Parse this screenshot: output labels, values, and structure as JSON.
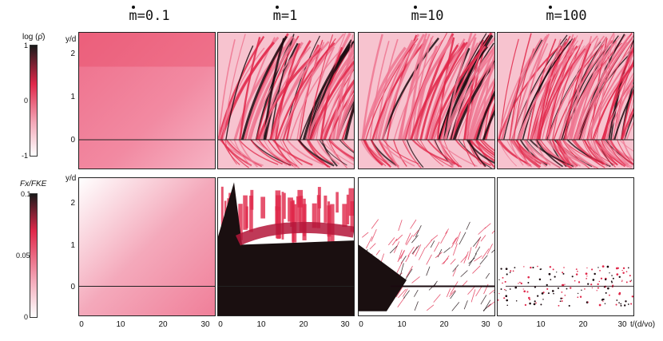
{
  "columns": [
    {
      "prefix": "m",
      "suffix": "=0.1"
    },
    {
      "prefix": "m",
      "suffix": "=1"
    },
    {
      "prefix": "m",
      "suffix": "=10"
    },
    {
      "prefix": "m",
      "suffix": "=100"
    }
  ],
  "colorbars": [
    {
      "title": "log (ρ̂)",
      "ticks": [
        "1",
        "0",
        "-1"
      ],
      "top_color": "#1a1a1a",
      "mid_color": "#e0284a",
      "bottom_color": "#ffffff"
    },
    {
      "title": "Fx/FKE",
      "ticks": [
        "0.1",
        "0.05",
        "0"
      ],
      "top_color": "#1a1a1a",
      "mid_color": "#e0284a",
      "bottom_color": "#ffffff"
    }
  ],
  "axes": {
    "y_label": "y/d",
    "y_ticks": [
      "2",
      "1",
      "0"
    ],
    "x_ticks": [
      "0",
      "10",
      "20",
      "30"
    ],
    "x_label": "t/(d/vo)"
  },
  "chart_data": [
    {
      "type": "heatmap",
      "row": "log density",
      "title": "m=0.1",
      "xlim": [
        0,
        32
      ],
      "ylim": [
        -0.7,
        2.6
      ],
      "pattern": "smooth gradient",
      "reference_line_y": 0
    },
    {
      "type": "heatmap",
      "row": "log density",
      "title": "m=1",
      "xlim": [
        0,
        32
      ],
      "ylim": [
        -0.7,
        2.6
      ],
      "pattern": "curved filaments",
      "reference_line_y": 0
    },
    {
      "type": "heatmap",
      "row": "log density",
      "title": "m=10",
      "xlim": [
        0,
        32
      ],
      "ylim": [
        -0.7,
        2.6
      ],
      "pattern": "curved filaments",
      "reference_line_y": 0
    },
    {
      "type": "heatmap",
      "row": "log density",
      "title": "m=100",
      "xlim": [
        0,
        32
      ],
      "ylim": [
        -0.7,
        2.6
      ],
      "pattern": "fine curved filaments",
      "reference_line_y": 0
    },
    {
      "type": "heatmap",
      "row": "Fx/FKE",
      "title": "m=0.1",
      "xlim": [
        0,
        32
      ],
      "ylim": [
        -0.7,
        2.6
      ],
      "pattern": "smooth gradient",
      "reference_line_y": 0
    },
    {
      "type": "heatmap",
      "row": "Fx/FKE",
      "title": "m=1",
      "xlim": [
        0,
        32
      ],
      "ylim": [
        -0.7,
        2.6
      ],
      "pattern": "saturated core with streaks",
      "reference_line_y": 0
    },
    {
      "type": "heatmap",
      "row": "Fx/FKE",
      "title": "m=10",
      "xlim": [
        0,
        32
      ],
      "ylim": [
        -0.7,
        2.6
      ],
      "pattern": "early dark wedge, sparse streaks"
    },
    {
      "type": "heatmap",
      "row": "Fx/FKE",
      "title": "m=100",
      "xlim": [
        0,
        32
      ],
      "ylim": [
        -0.7,
        2.6
      ],
      "pattern": "sparse dotted streaks"
    }
  ]
}
